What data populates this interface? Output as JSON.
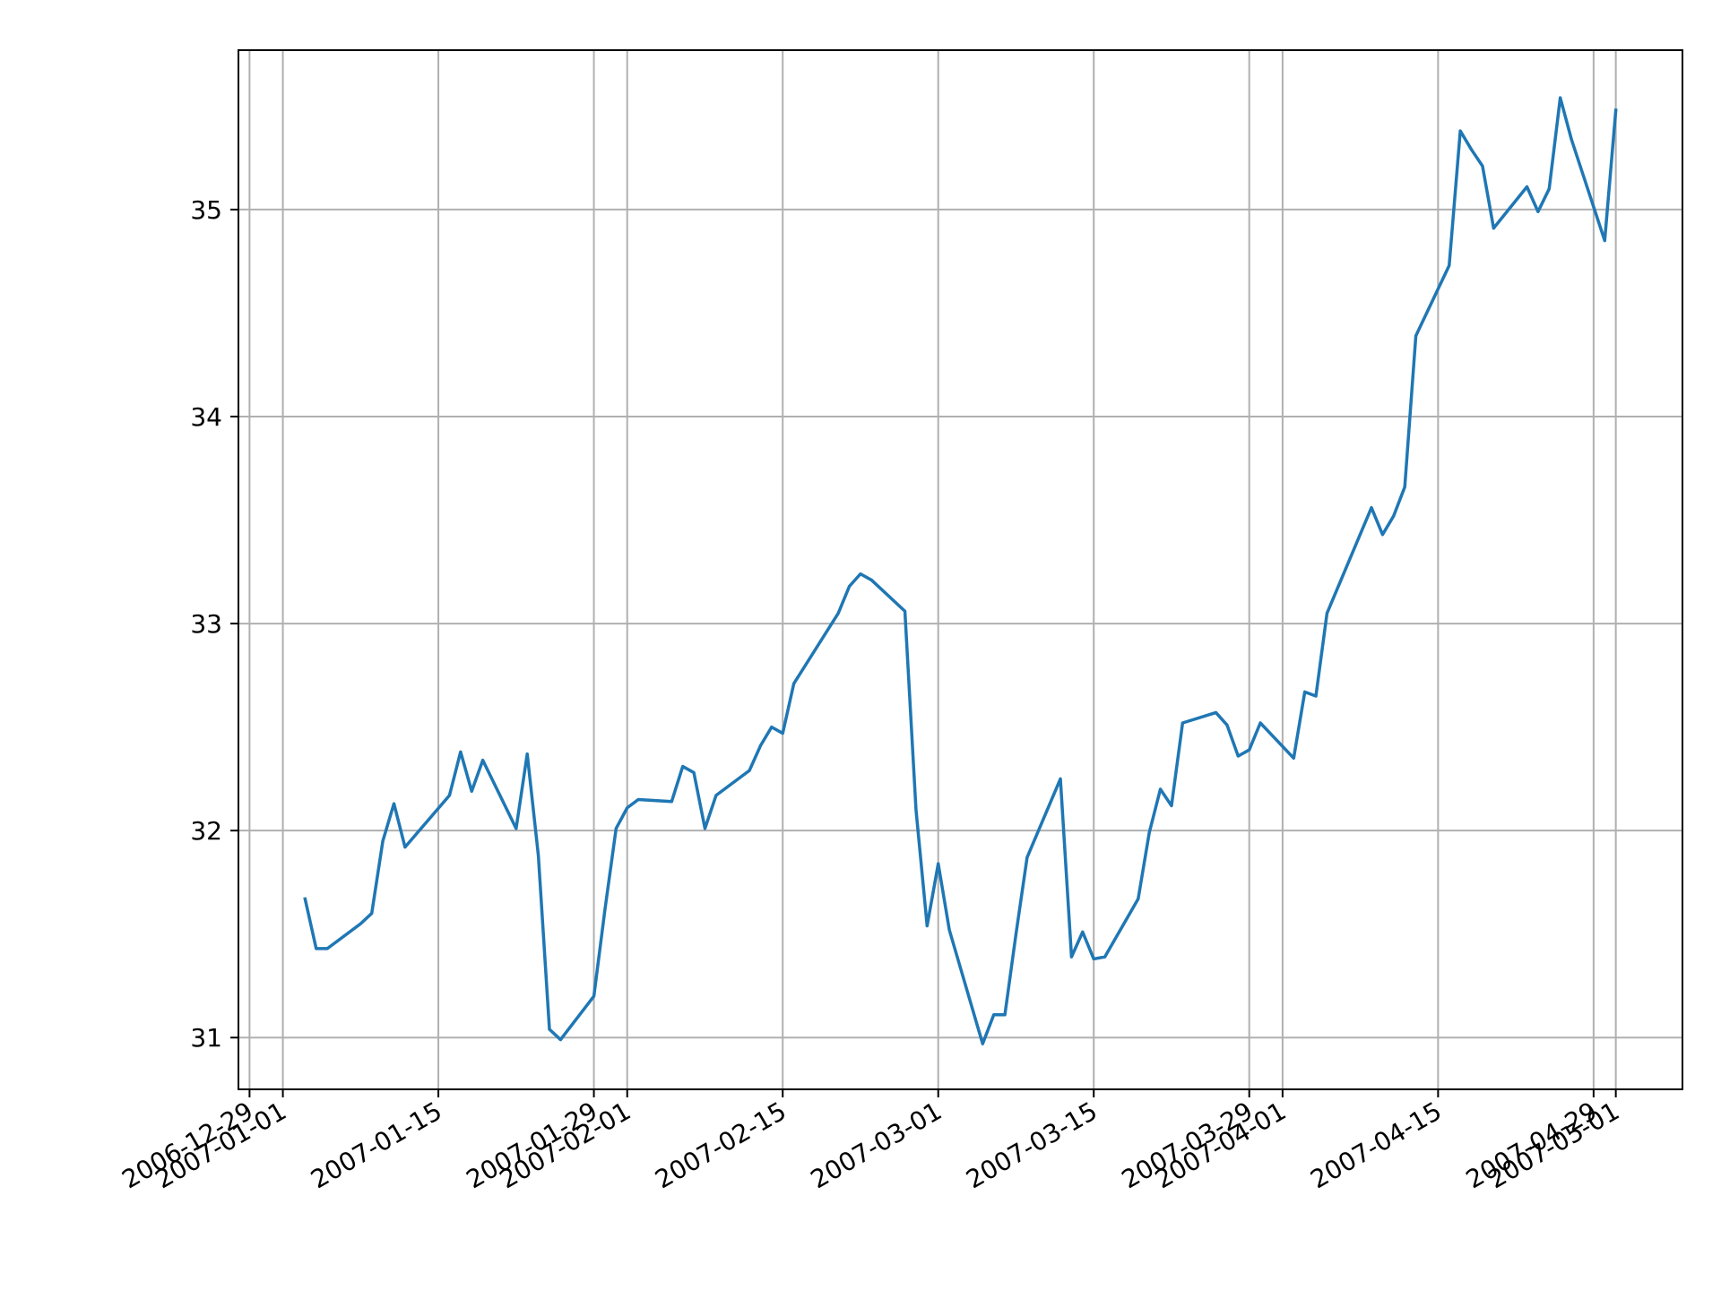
{
  "chart_data": {
    "type": "line",
    "title": "",
    "xlabel": "",
    "ylabel": "",
    "grid": true,
    "xlim": [
      "2006-12-28",
      "2007-05-07"
    ],
    "ylim": [
      30.75,
      35.77
    ],
    "yticks": [
      31,
      32,
      33,
      34,
      35
    ],
    "xticks": [
      "2006-12-29",
      "2007-01-01",
      "2007-01-15",
      "2007-01-29",
      "2007-02-01",
      "2007-02-15",
      "2007-03-01",
      "2007-03-15",
      "2007-03-29",
      "2007-04-01",
      "2007-04-15",
      "2007-04-29",
      "2007-05-01"
    ],
    "series": [
      {
        "name": "",
        "color": "#1f77b4",
        "x": [
          "2007-01-03",
          "2007-01-04",
          "2007-01-05",
          "2007-01-08",
          "2007-01-09",
          "2007-01-10",
          "2007-01-11",
          "2007-01-12",
          "2007-01-16",
          "2007-01-17",
          "2007-01-18",
          "2007-01-19",
          "2007-01-22",
          "2007-01-23",
          "2007-01-24",
          "2007-01-25",
          "2007-01-26",
          "2007-01-29",
          "2007-01-30",
          "2007-01-31",
          "2007-02-01",
          "2007-02-02",
          "2007-02-05",
          "2007-02-06",
          "2007-02-07",
          "2007-02-08",
          "2007-02-09",
          "2007-02-12",
          "2007-02-13",
          "2007-02-14",
          "2007-02-15",
          "2007-02-16",
          "2007-02-20",
          "2007-02-21",
          "2007-02-22",
          "2007-02-23",
          "2007-02-26",
          "2007-02-27",
          "2007-02-28",
          "2007-03-01",
          "2007-03-02",
          "2007-03-05",
          "2007-03-06",
          "2007-03-07",
          "2007-03-08",
          "2007-03-09",
          "2007-03-12",
          "2007-03-13",
          "2007-03-14",
          "2007-03-15",
          "2007-03-16",
          "2007-03-19",
          "2007-03-20",
          "2007-03-21",
          "2007-03-22",
          "2007-03-23",
          "2007-03-26",
          "2007-03-27",
          "2007-03-28",
          "2007-03-29",
          "2007-03-30",
          "2007-04-02",
          "2007-04-03",
          "2007-04-04",
          "2007-04-05",
          "2007-04-09",
          "2007-04-10",
          "2007-04-11",
          "2007-04-12",
          "2007-04-13",
          "2007-04-16",
          "2007-04-17",
          "2007-04-18",
          "2007-04-19",
          "2007-04-20",
          "2007-04-23",
          "2007-04-24",
          "2007-04-25",
          "2007-04-26",
          "2007-04-27",
          "2007-04-30",
          "2007-05-01"
        ],
        "y": [
          31.67,
          31.43,
          31.43,
          31.55,
          31.6,
          31.95,
          32.13,
          31.92,
          32.17,
          32.38,
          32.19,
          32.34,
          32.01,
          32.37,
          31.88,
          31.04,
          30.99,
          31.2,
          31.62,
          32.01,
          32.11,
          32.15,
          32.14,
          32.31,
          32.28,
          32.01,
          32.17,
          32.29,
          32.41,
          32.5,
          32.47,
          32.71,
          33.05,
          33.18,
          33.24,
          33.21,
          33.06,
          32.1,
          31.54,
          31.84,
          31.52,
          30.97,
          31.11,
          31.11,
          31.5,
          31.87,
          32.25,
          31.39,
          31.51,
          31.38,
          31.39,
          31.67,
          31.99,
          32.2,
          32.12,
          32.52,
          32.57,
          32.51,
          32.36,
          32.39,
          32.52,
          32.35,
          32.67,
          32.65,
          33.05,
          33.56,
          33.43,
          33.52,
          33.66,
          34.39,
          34.73,
          35.38,
          35.29,
          35.21,
          34.91,
          35.11,
          34.99,
          35.1,
          35.54,
          35.34,
          34.85,
          35.48
        ]
      }
    ]
  }
}
